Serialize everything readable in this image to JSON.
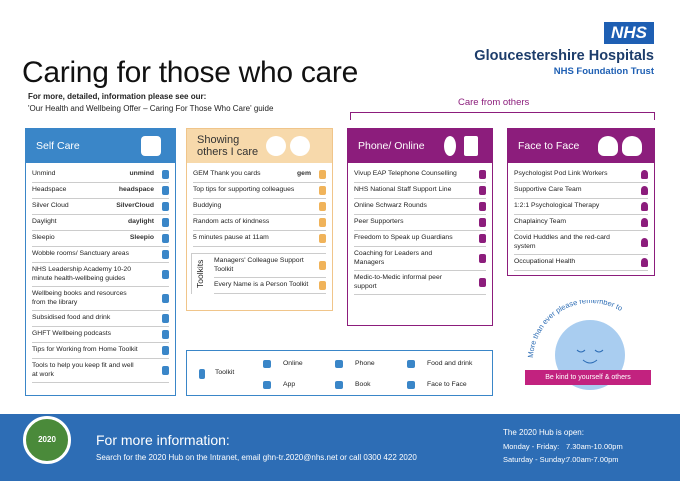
{
  "header": {
    "logo": "NHS",
    "organisation": "Gloucestershire Hospitals",
    "trust": "NHS Foundation Trust"
  },
  "title": "Caring for those who care",
  "intro": [
    "For more, detailed, information please see our:",
    "'Our Health and Wellbeing Offer – Caring For Those Who Care' guide"
  ],
  "care_from_others": "Care from others",
  "columns": [
    {
      "title": "Self Care",
      "items": [
        {
          "text": "Unmind",
          "logo": "unmind"
        },
        {
          "text": "Headspace",
          "logo": "headspace"
        },
        {
          "text": "Silver Cloud",
          "logo": "SilverCloud"
        },
        {
          "text": "Daylight",
          "logo": "daylight"
        },
        {
          "text": "Sleepio",
          "logo": "Sleepio"
        },
        {
          "text": "Wobble rooms/ Sanctuary areas"
        },
        {
          "text": "NHS Leadership Academy 10-20 minute health-wellbeing guides"
        },
        {
          "text": "Wellbeing books and resources from the library"
        },
        {
          "text": "Subsidised food and drink"
        },
        {
          "text": "GHFT Wellbeing podcasts"
        },
        {
          "text": "Tips for Working from Home Toolkit"
        },
        {
          "text": "Tools to help you keep fit and well at work"
        }
      ]
    },
    {
      "title": "Showing others I care",
      "items": [
        {
          "text": "GEM Thank you cards",
          "logo": "gem"
        },
        {
          "text": "Top tips for supporting colleagues"
        },
        {
          "text": "Buddying"
        },
        {
          "text": "Random acts of kindness"
        },
        {
          "text": "5 minutes pause at 11am"
        }
      ],
      "toolkits": {
        "label": "Toolkits",
        "items": [
          "Managers' Colleague Support Toolkit",
          "Every Name is a Person Toolkit"
        ]
      }
    },
    {
      "title": "Phone/ Online",
      "items": [
        {
          "text": "Vivup EAP Telephone Counselling"
        },
        {
          "text": "NHS National Staff Support Line"
        },
        {
          "text": "Online Schwarz Rounds"
        },
        {
          "text": "Peer Supporters"
        },
        {
          "text": "Freedom to Speak up Guardians"
        },
        {
          "text": "Coaching for Leaders and Managers"
        },
        {
          "text": "Medic-to-Medic informal peer support"
        }
      ]
    },
    {
      "title": "Face to Face",
      "items": [
        {
          "text": "Psychologist Pod Link Workers"
        },
        {
          "text": "Supportive Care Team"
        },
        {
          "text": "1:2:1 Psychological Therapy"
        },
        {
          "text": "Chaplaincy Team"
        },
        {
          "text": "Covid Huddles and the red-card system"
        },
        {
          "text": "Occupational Health"
        }
      ]
    }
  ],
  "key": {
    "title": "Toolkit",
    "items": [
      "Online",
      "Phone",
      "Food and drink",
      "App",
      "Book",
      "Face to Face"
    ]
  },
  "reminder": {
    "arc_text": "More than ever please remember to",
    "banner": "Be kind to yourself & others"
  },
  "footer": {
    "badge": "2020",
    "heading": "For more information:",
    "details": "Search for the 2020 Hub on the Intranet, email ghn-tr.2020@nhs.net or call 0300 422 2020",
    "hours_title": "The 2020 Hub is open:",
    "hours": [
      [
        "Monday - Friday:",
        "7.30am-10.00pm"
      ],
      [
        "Saturday - Sunday:",
        "7.00am-7.00pm"
      ]
    ]
  }
}
